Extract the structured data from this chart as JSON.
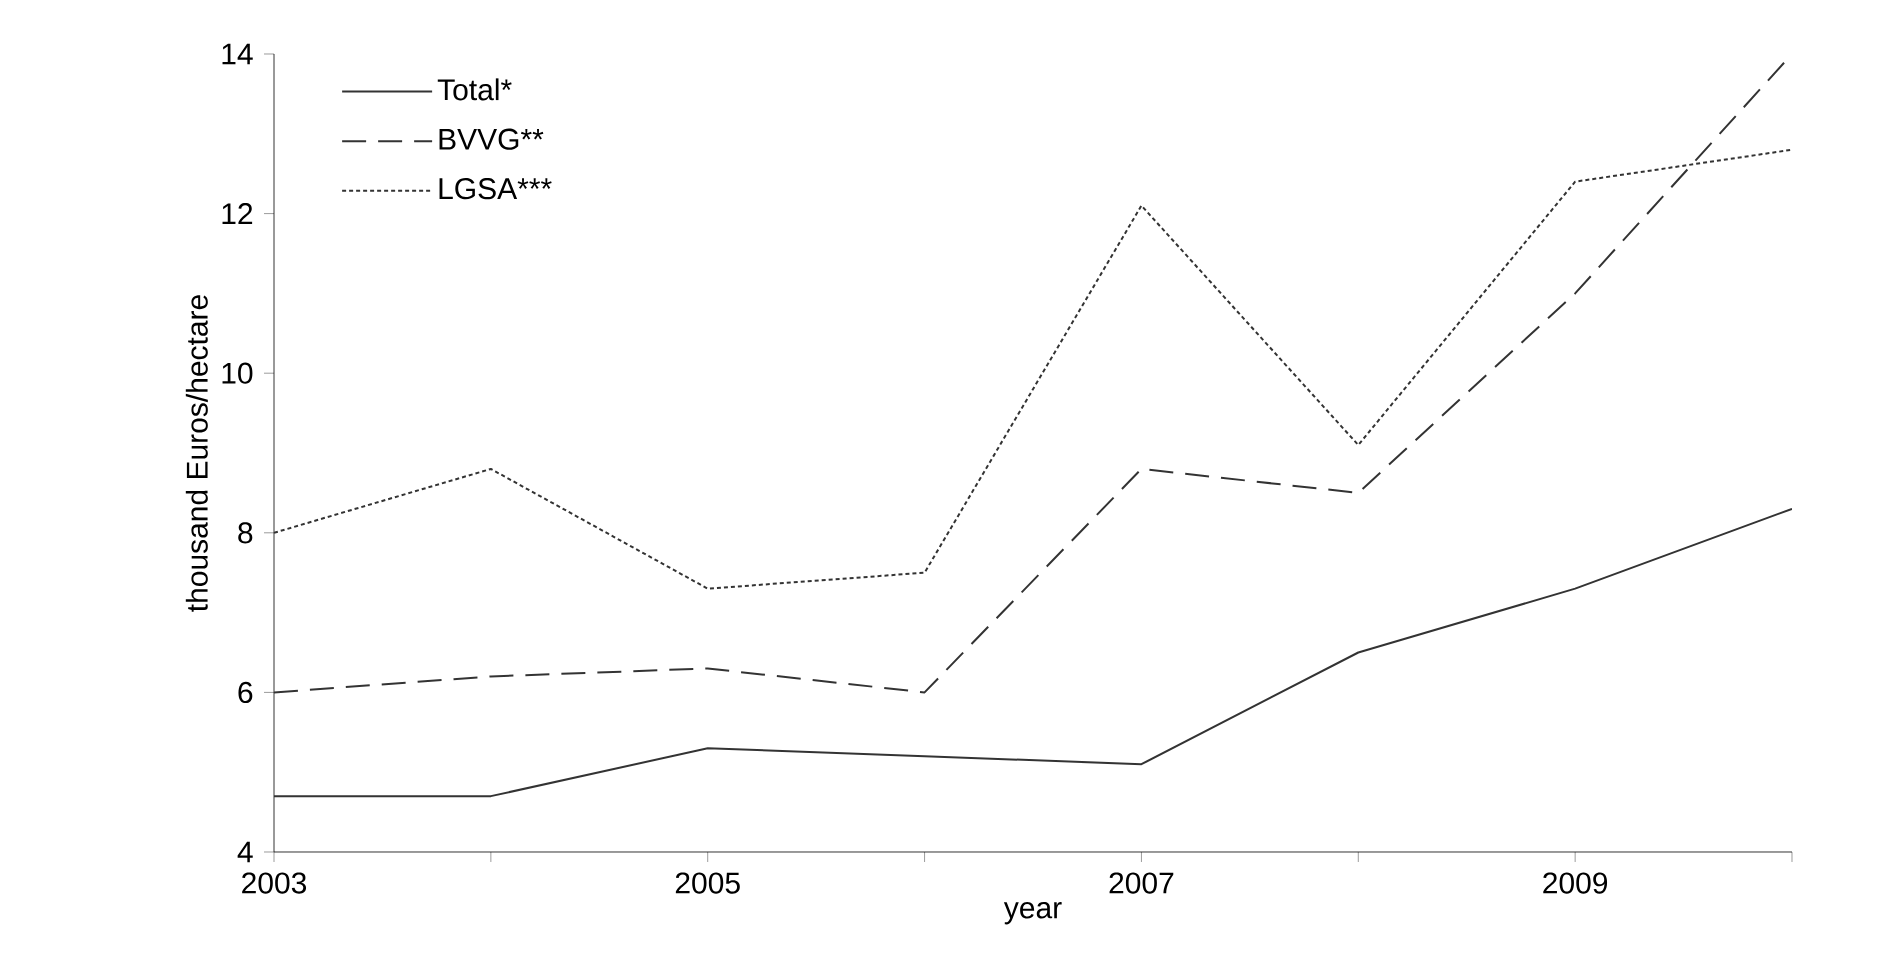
{
  "chart_data": {
    "type": "line",
    "xlabel": "year",
    "ylabel": "thousand Euros/hectare",
    "x": [
      2003,
      2004,
      2005,
      2006,
      2007,
      2008,
      2009,
      2010
    ],
    "series": [
      {
        "name": "Total*",
        "color": "#333333",
        "line_style": "solid",
        "values": [
          4.7,
          4.7,
          5.3,
          5.2,
          5.1,
          6.5,
          7.3,
          8.3
        ]
      },
      {
        "name": "BVVG**",
        "color": "#333333",
        "line_style": "dashed",
        "values": [
          6.0,
          6.2,
          6.3,
          6.0,
          8.8,
          8.5,
          11.0,
          14.0
        ]
      },
      {
        "name": "LGSA***",
        "color": "#333333",
        "line_style": "dotted",
        "values": [
          8.0,
          8.8,
          7.3,
          7.5,
          12.1,
          9.1,
          12.4,
          12.8
        ]
      }
    ],
    "xlim": [
      2003,
      2010
    ],
    "xticks": [
      2003,
      {
        "value": 2004,
        "label": null
      },
      2005,
      {
        "value": 2006,
        "label": null
      },
      2007,
      {
        "value": 2008,
        "label": null
      },
      2009,
      {
        "value": 2010,
        "label": null
      }
    ],
    "ylim": [
      4,
      14
    ],
    "yticks": [
      4,
      6,
      8,
      10,
      12,
      14
    ],
    "grid": false,
    "legend": "top left",
    "marker": "none"
  }
}
